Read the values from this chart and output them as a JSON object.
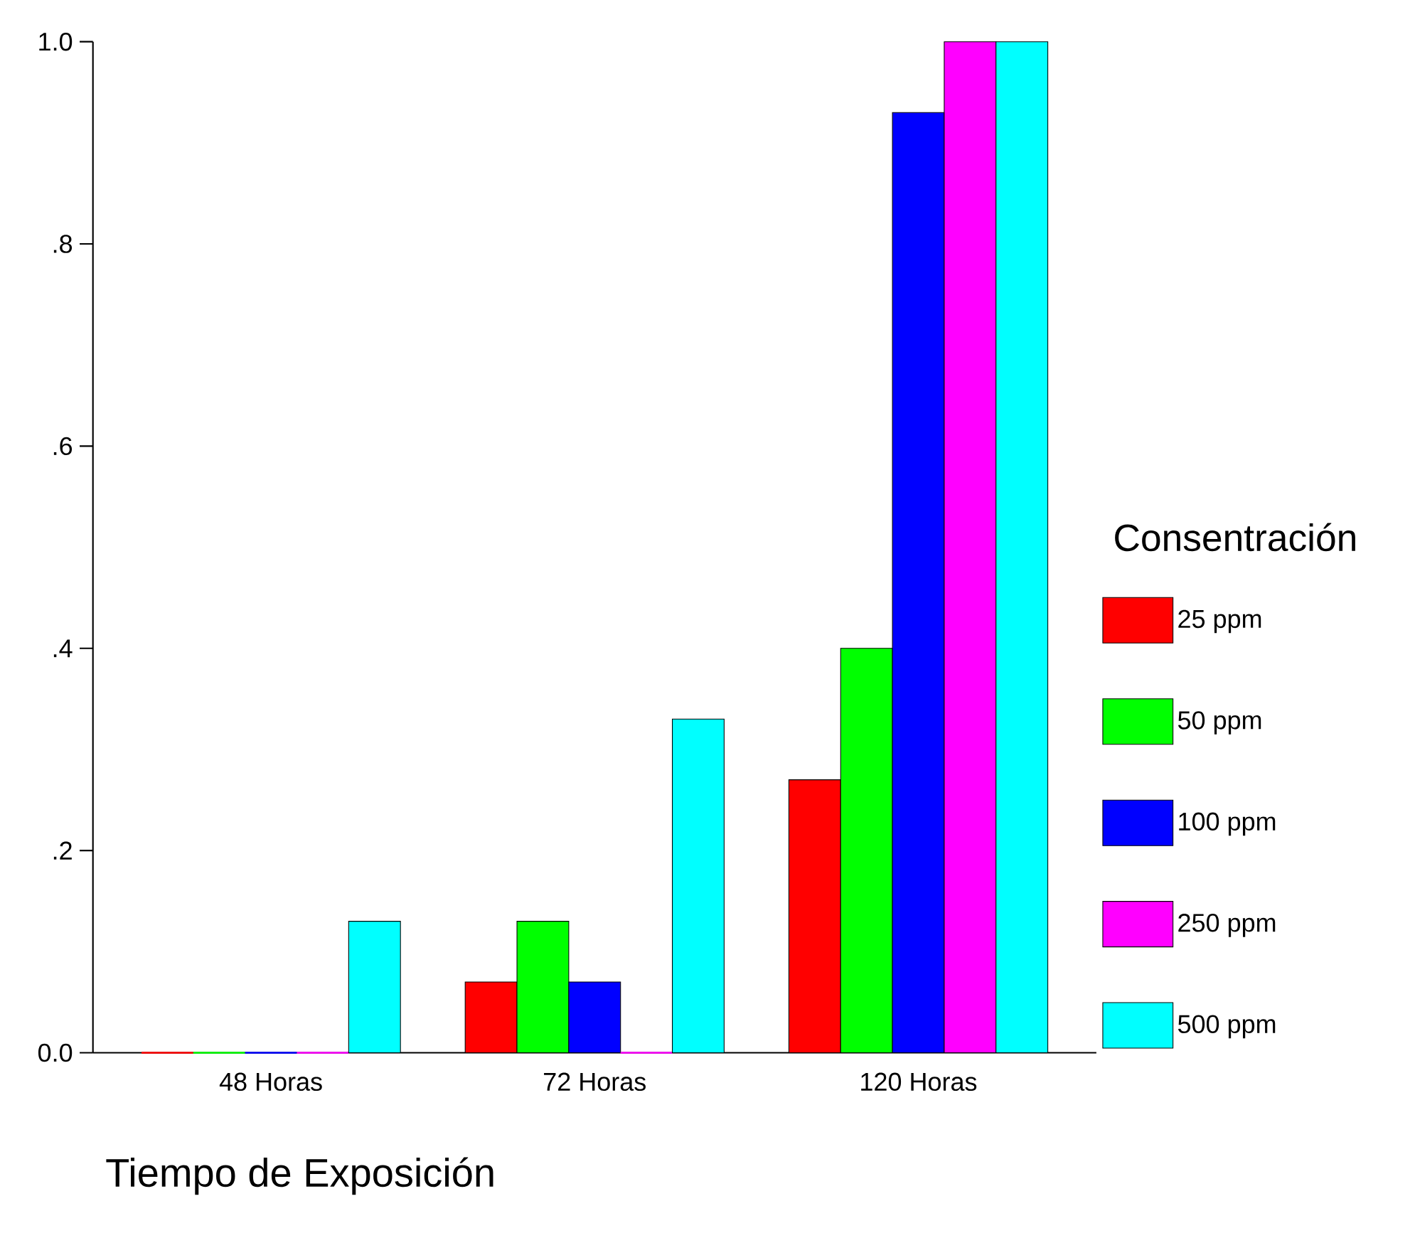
{
  "chart_data": {
    "type": "bar",
    "xlabel": "Tiempo de Exposición",
    "legend_title": "Consentración",
    "categories": [
      "48 Horas",
      "72 Horas",
      "120 Horas"
    ],
    "series": [
      {
        "name": "25 ppm",
        "color": "#ff0000",
        "values": [
          0,
          0.07,
          0.27
        ]
      },
      {
        "name": "50 ppm",
        "color": "#00ff00",
        "values": [
          0,
          0.13,
          0.4
        ]
      },
      {
        "name": "100 ppm",
        "color": "#0000ff",
        "values": [
          0,
          0.07,
          0.93
        ]
      },
      {
        "name": "250 ppm",
        "color": "#ff00ff",
        "values": [
          0,
          0,
          1.0
        ]
      },
      {
        "name": "500 ppm",
        "color": "#00ffff",
        "values": [
          0.13,
          0.33,
          1.0
        ]
      }
    ],
    "ylim": [
      0,
      1.0
    ],
    "yticks": [
      {
        "value": 0,
        "label": "0.0"
      },
      {
        "value": 0.2,
        "label": ".2"
      },
      {
        "value": 0.4,
        "label": ".4"
      },
      {
        "value": 0.6,
        "label": ".6"
      },
      {
        "value": 0.8,
        "label": ".8"
      },
      {
        "value": 1.0,
        "label": "1.0"
      }
    ],
    "legend": "right"
  }
}
